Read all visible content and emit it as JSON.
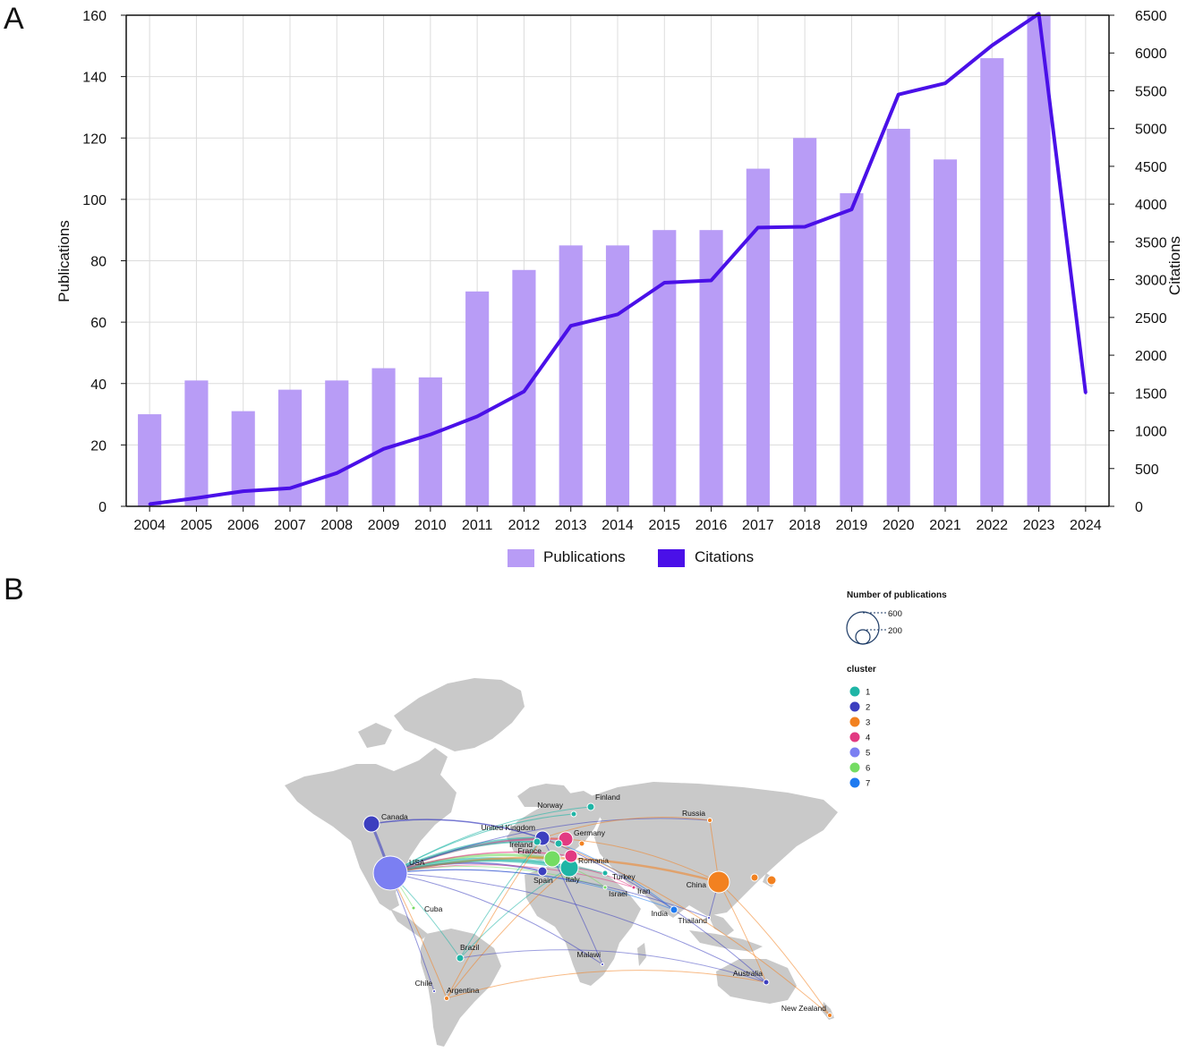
{
  "panels": {
    "a_label": "A",
    "b_label": "B"
  },
  "chart_data": [
    {
      "type": "bar",
      "categories": [
        "2004",
        "2005",
        "2006",
        "2007",
        "2008",
        "2009",
        "2010",
        "2011",
        "2012",
        "2013",
        "2014",
        "2015",
        "2016",
        "2017",
        "2018",
        "2019",
        "2020",
        "2021",
        "2022",
        "2023",
        "2024"
      ],
      "series": [
        {
          "name": "Publications",
          "type": "bar",
          "axis": "left",
          "color": "#b89cf6",
          "values": [
            30,
            41,
            31,
            38,
            41,
            45,
            42,
            70,
            77,
            85,
            85,
            90,
            90,
            110,
            120,
            102,
            123,
            113,
            146,
            160,
            null
          ]
        },
        {
          "name": "Citations",
          "type": "line",
          "axis": "right",
          "color": "#4a10e8",
          "values": [
            30,
            110,
            200,
            240,
            440,
            760,
            950,
            1190,
            1520,
            2390,
            2540,
            2960,
            2990,
            3690,
            3700,
            3930,
            5450,
            5600,
            6100,
            6520,
            1500
          ]
        }
      ],
      "ylabel": "Publications",
      "ylabel_right": "Citations",
      "ylim": [
        0,
        160
      ],
      "ylim_right": [
        0,
        6500
      ],
      "yticks": [
        0,
        20,
        40,
        60,
        80,
        100,
        120,
        140,
        160
      ],
      "yticks_right": [
        0,
        500,
        1000,
        1500,
        2000,
        2500,
        3000,
        3500,
        4000,
        4500,
        5000,
        5500,
        6000,
        6500
      ],
      "grid": true,
      "legend_position": "bottom"
    }
  ],
  "map": {
    "size_legend_title": "Number of publications",
    "size_legend_values": [
      "600",
      "200"
    ],
    "cluster_legend_title": "cluster",
    "clusters": [
      {
        "label": "1",
        "color": "#1fb5a6"
      },
      {
        "label": "2",
        "color": "#3c3fbf"
      },
      {
        "label": "3",
        "color": "#f28120"
      },
      {
        "label": "4",
        "color": "#e23a82"
      },
      {
        "label": "5",
        "color": "#7b7ff2"
      },
      {
        "label": "6",
        "color": "#74dc63"
      },
      {
        "label": "7",
        "color": "#1e7af0"
      }
    ],
    "countries": [
      {
        "name": "USA",
        "cluster": 5
      },
      {
        "name": "Canada",
        "cluster": 2
      },
      {
        "name": "United Kingdom",
        "cluster": 2
      },
      {
        "name": "Ireland",
        "cluster": 1
      },
      {
        "name": "France",
        "cluster": 6
      },
      {
        "name": "Spain",
        "cluster": 2
      },
      {
        "name": "Italy",
        "cluster": 1
      },
      {
        "name": "Germany",
        "cluster": 4
      },
      {
        "name": "Norway",
        "cluster": 1
      },
      {
        "name": "Finland",
        "cluster": 1
      },
      {
        "name": "Romania",
        "cluster": 4
      },
      {
        "name": "Turkey",
        "cluster": 1
      },
      {
        "name": "Israel",
        "cluster": 6
      },
      {
        "name": "Iran",
        "cluster": 4
      },
      {
        "name": "Russia",
        "cluster": 3
      },
      {
        "name": "China",
        "cluster": 3
      },
      {
        "name": "India",
        "cluster": 7
      },
      {
        "name": "Thailand",
        "cluster": 2
      },
      {
        "name": "Cuba",
        "cluster": 6
      },
      {
        "name": "Brazil",
        "cluster": 1
      },
      {
        "name": "Chile",
        "cluster": 2
      },
      {
        "name": "Argentina",
        "cluster": 3
      },
      {
        "name": "Malawi",
        "cluster": 2
      },
      {
        "name": "Australia",
        "cluster": 2
      },
      {
        "name": "New Zealand",
        "cluster": 3
      }
    ]
  }
}
